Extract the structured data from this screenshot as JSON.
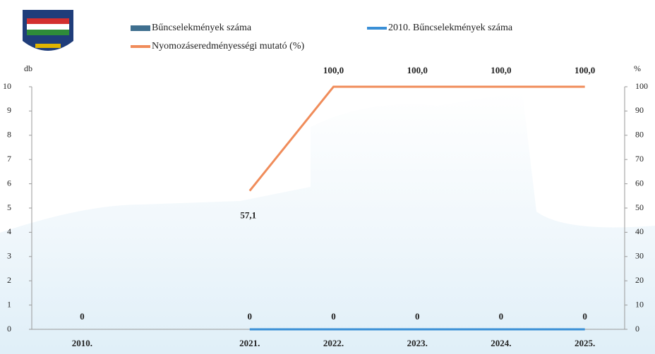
{
  "chart_data": {
    "type": "bar",
    "categories": [
      "2010.",
      null,
      "2021.",
      "2022.",
      "2023.",
      "2024.",
      "2025."
    ],
    "series": [
      {
        "name": "Bűncselekmények száma",
        "color": "#3f6f8f",
        "type": "bar",
        "values": [
          0,
          null,
          0,
          0,
          0,
          0,
          0
        ]
      },
      {
        "name": "2010. Bűncselekmények száma",
        "color": "#3a8fd6",
        "type": "line",
        "values": [
          0,
          null,
          0,
          0,
          0,
          0,
          0
        ]
      },
      {
        "name": "Nyomozáseredményességi mutató (%)",
        "color": "#f08c5a",
        "type": "line",
        "axis": "y2",
        "values": [
          null,
          null,
          57.1,
          100,
          100,
          100,
          100
        ],
        "value_labels": [
          null,
          null,
          "57,1",
          "100,0",
          "100,0",
          "100,0",
          "100,0"
        ]
      }
    ],
    "y_label": "db",
    "y2_label": "%",
    "ylim": [
      0,
      10
    ],
    "yticks": [
      0,
      1,
      2,
      3,
      4,
      5,
      6,
      7,
      8,
      9,
      10
    ],
    "y2lim": [
      0,
      100
    ],
    "y2ticks": [
      0,
      10,
      20,
      30,
      40,
      50,
      60,
      70,
      80,
      90,
      100
    ]
  }
}
